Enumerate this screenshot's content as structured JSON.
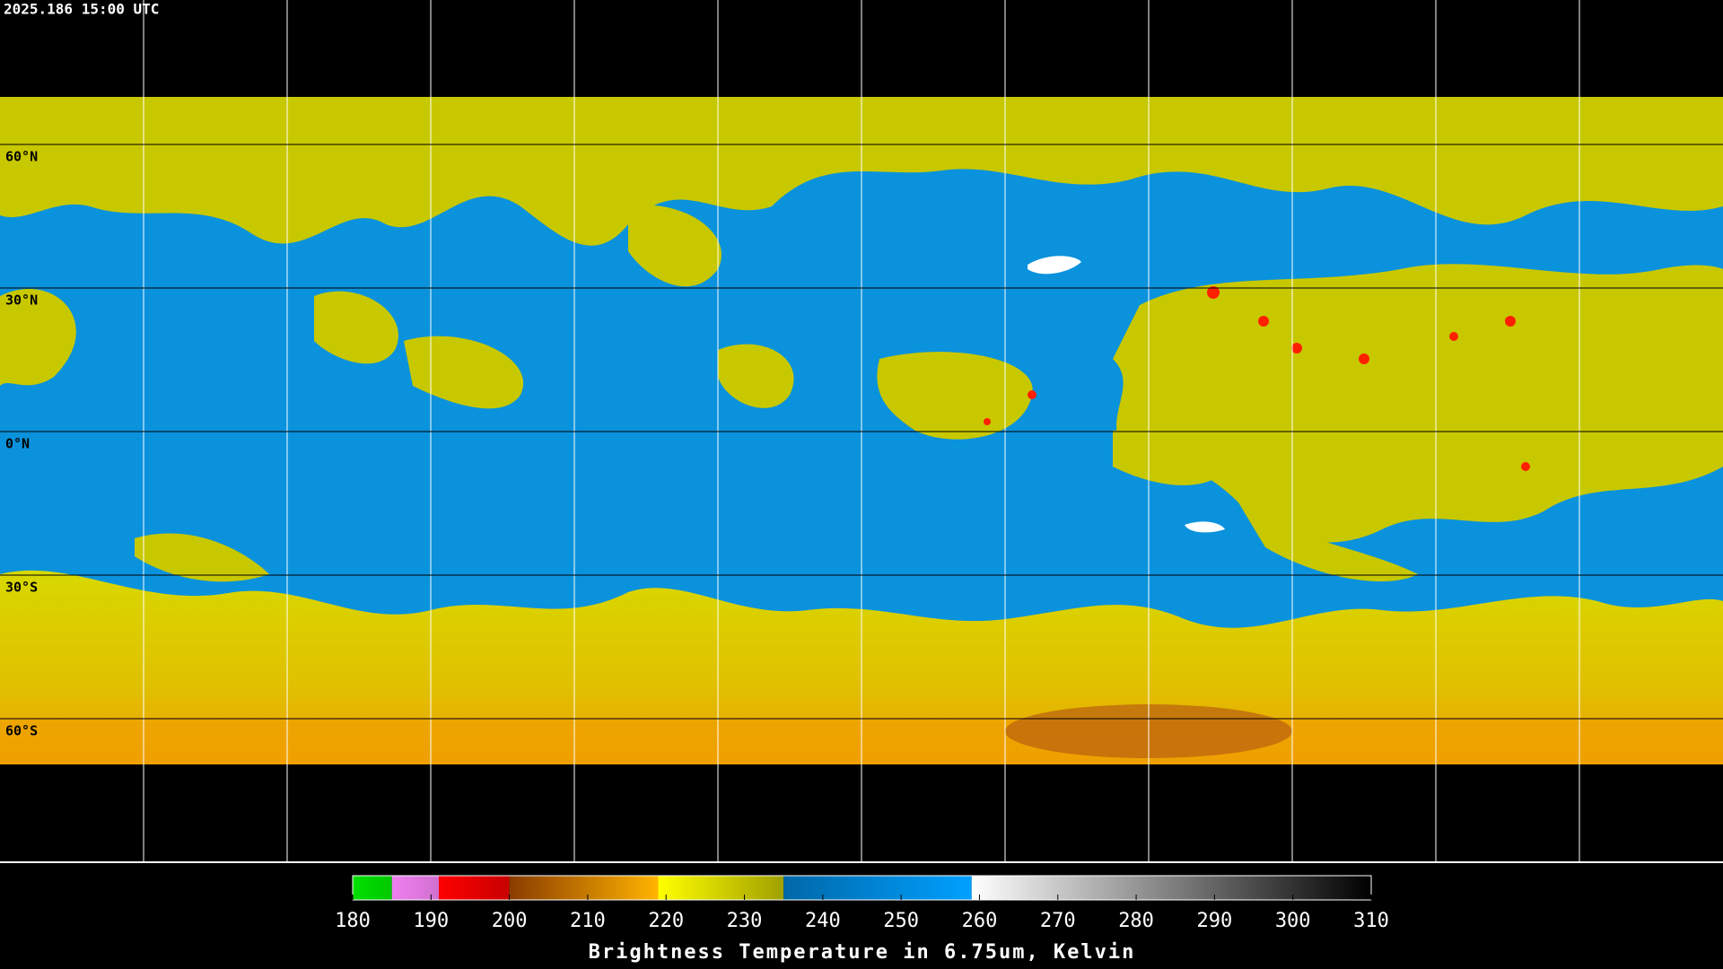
{
  "timestamp": "2025.186 15:00 UTC",
  "latitudes": [
    {
      "value": 60,
      "label": "60°N"
    },
    {
      "value": 30,
      "label": "30°N"
    },
    {
      "value": 0,
      "label": "0°N"
    },
    {
      "value": -30,
      "label": "30°S"
    },
    {
      "value": -60,
      "label": "60°S"
    }
  ],
  "colorbar": {
    "title": "Brightness Temperature in 6.75um, Kelvin",
    "range": [
      180,
      310
    ],
    "ticks": [
      180,
      190,
      200,
      210,
      220,
      230,
      240,
      250,
      260,
      270,
      280,
      290,
      300,
      310
    ],
    "segments": [
      {
        "from": 180,
        "to": 185,
        "start": "#00e000",
        "end": "#00c800"
      },
      {
        "from": 185,
        "to": 191,
        "start": "#f080f0",
        "end": "#d070d0"
      },
      {
        "from": 191,
        "to": 200,
        "start": "#ff0000",
        "end": "#c80000"
      },
      {
        "from": 200,
        "to": 219,
        "start": "#8a3c00",
        "end": "#ffb400"
      },
      {
        "from": 219,
        "to": 235,
        "start": "#ffff00",
        "end": "#a0a000"
      },
      {
        "from": 235,
        "to": 259,
        "start": "#0068a8",
        "end": "#00a0ff"
      },
      {
        "from": 259,
        "to": 310,
        "start": "#ffffff",
        "end": "#000000"
      }
    ]
  }
}
